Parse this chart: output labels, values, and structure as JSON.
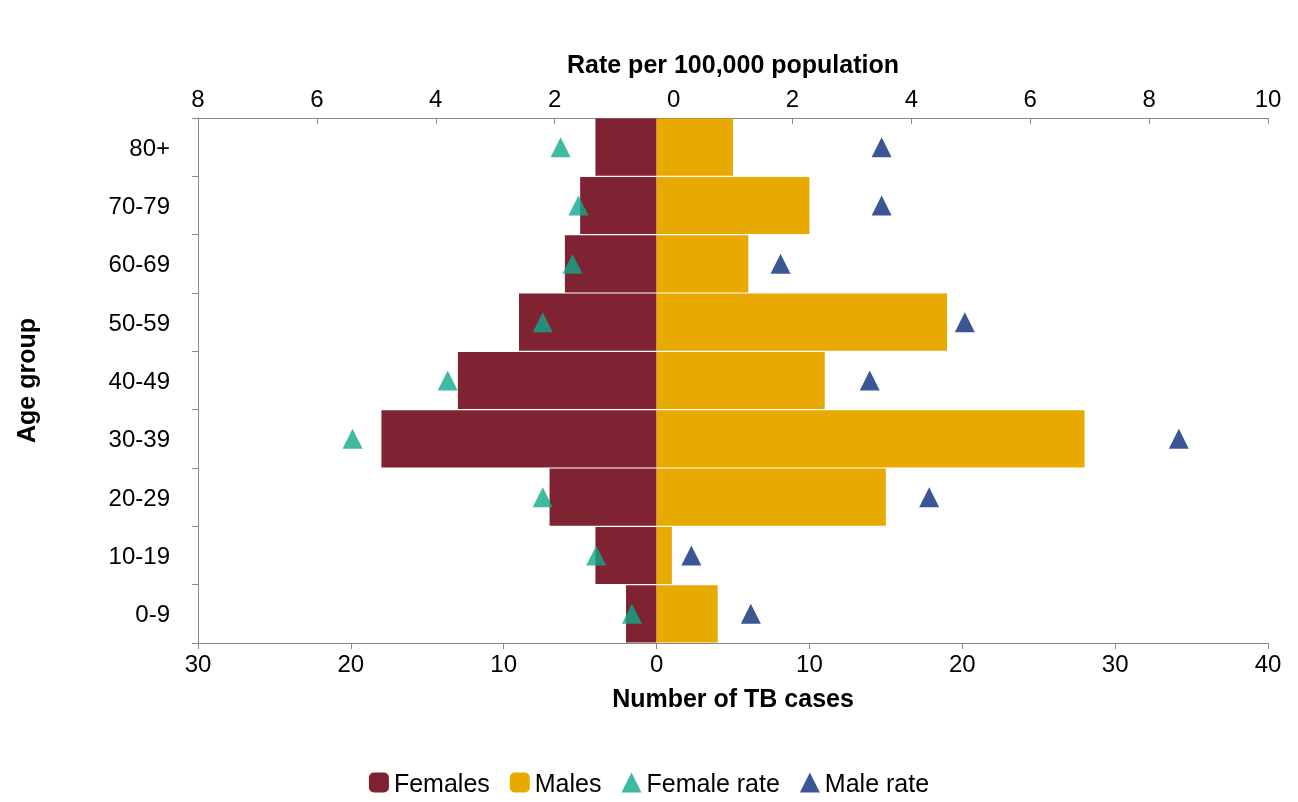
{
  "chart_data": {
    "type": "bar",
    "orientation": "horizontal",
    "stacked": true,
    "categories": [
      "80+",
      "70-79",
      "60-69",
      "50-59",
      "40-49",
      "30-39",
      "20-29",
      "10-19",
      "0-9"
    ],
    "series": [
      {
        "name": "Females",
        "color": "#7f2232",
        "values": [
          -4,
          -5,
          -6,
          -9,
          -13,
          -18,
          -7,
          -4,
          -2
        ]
      },
      {
        "name": "Males",
        "color": "#e8a900",
        "values": [
          5,
          10,
          6,
          19,
          11,
          28,
          15,
          1,
          4
        ]
      },
      {
        "name": "Female rate",
        "type": "scatter",
        "axis": "x2",
        "marker": "triangle",
        "color": "#10a98b",
        "values": [
          -1.9,
          -1.6,
          -1.7,
          -2.2,
          -3.8,
          -5.4,
          -2.2,
          -1.3,
          -0.7
        ]
      },
      {
        "name": "Male rate",
        "type": "scatter",
        "axis": "x2",
        "marker": "triangle",
        "color": "#0b2c7a",
        "values": [
          3.5,
          3.5,
          1.8,
          4.9,
          3.3,
          8.5,
          4.3,
          0.3,
          1.3
        ]
      }
    ],
    "xlim": [
      -30,
      40
    ],
    "xticks": [
      {
        "value": -30,
        "label": "30"
      },
      {
        "value": -20,
        "label": "20"
      },
      {
        "value": -10,
        "label": "10"
      },
      0,
      10,
      20,
      30,
      40
    ],
    "x2lim": [
      -8,
      10
    ],
    "x2ticks": [
      {
        "value": -8,
        "label": "8"
      },
      {
        "value": -6,
        "label": "6"
      },
      {
        "value": -4,
        "label": "4"
      },
      {
        "value": -2,
        "label": "2"
      },
      0,
      2,
      4,
      6,
      8,
      10
    ],
    "xlabel": "Number of TB cases",
    "x2label": "Rate per 100,000 population",
    "ylabel": "Age group",
    "legend": "bottom",
    "grid": false
  }
}
